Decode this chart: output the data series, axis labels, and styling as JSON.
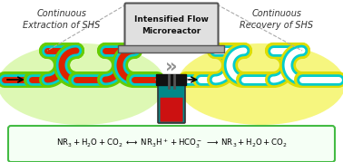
{
  "title_left": "Continuous\nExtraction of SHS",
  "title_right": "Continuous\nRecovery of SHS",
  "box_title": "Intensified Flow\nMicroreactor",
  "bg_color": "#ffffff",
  "left_glow": "#aaee44",
  "right_glow": "#eeee00",
  "tube_outer_green": "#66cc00",
  "tube_outer_yellow": "#dddd00",
  "tube_cyan": "#00cccc",
  "tube_red": "#dd2200",
  "tube_white": "#ffffff",
  "tube_gray": "#bbbbbb",
  "laptop_bg": "#aaaaaa",
  "laptop_screen_bg": "#e0e0e0",
  "laptop_border": "#666666",
  "vessel_dark": "#111111",
  "vessel_teal": "#008888",
  "vessel_red": "#cc1111",
  "connector_color": "#888888",
  "double_arrow_color": "#888888",
  "black_arrow_color": "#111111"
}
